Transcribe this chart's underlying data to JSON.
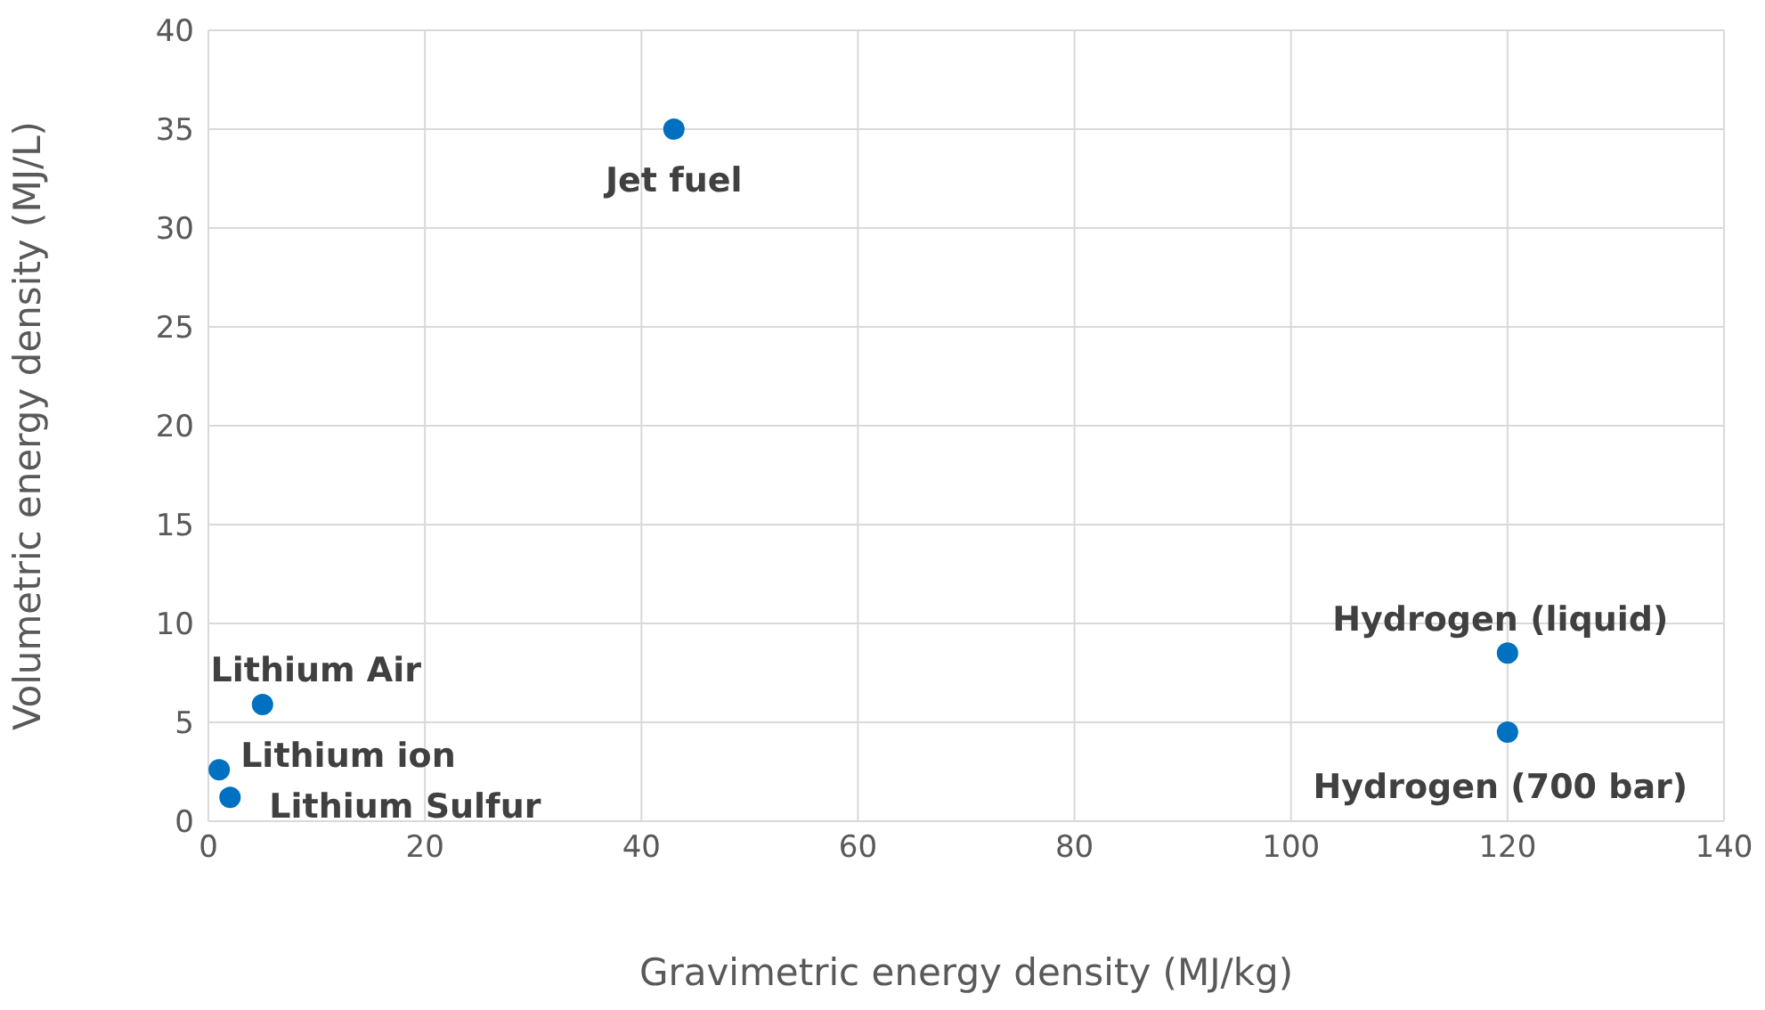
{
  "chart_data": {
    "type": "scatter",
    "xlabel": "Gravimetric energy density (MJ/kg)",
    "ylabel": "Volumetric energy density (MJ/L)",
    "x": [
      43,
      120,
      120,
      5,
      1,
      2
    ],
    "values": [
      35,
      8.5,
      4.5,
      5.9,
      2.6,
      1.2
    ],
    "color": "#0070c0",
    "marker": "circle",
    "grid": true,
    "xlim": [
      0,
      140
    ],
    "xticks": [
      0,
      20,
      40,
      60,
      80,
      100,
      120,
      140
    ],
    "ylim": [
      0,
      40
    ],
    "yticks": [
      0,
      5,
      10,
      15,
      20,
      25,
      30,
      35,
      40
    ],
    "annotations": [
      {
        "text": "Jet fuel",
        "x": 43,
        "y": 35
      },
      {
        "text": "Hydrogen (liquid)",
        "x": 120,
        "y": 8.5
      },
      {
        "text": "Hydrogen (700 bar)",
        "x": 120,
        "y": 4.5
      },
      {
        "text": "Lithium Air",
        "x": 5,
        "y": 5.9
      },
      {
        "text": "Lithium ion",
        "x": 1,
        "y": 2.6
      },
      {
        "text": "Lithium Sulfur",
        "x": 2,
        "y": 1.2
      }
    ]
  }
}
